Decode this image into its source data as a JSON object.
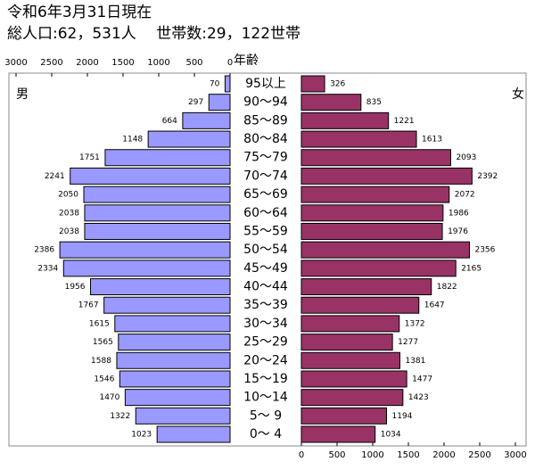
{
  "chart_data": {
    "type": "pyramid",
    "title": "令和6年3月31日現在",
    "subtitle": "総人口:62，531人　 世帯数:29，122世帯",
    "y_label": "年齢",
    "categories": [
      "95以上",
      "90～94",
      "85～89",
      "80～84",
      "75～79",
      "70～74",
      "65～69",
      "60～64",
      "55～59",
      "50～54",
      "45～49",
      "40～44",
      "35～39",
      "30～34",
      "25～29",
      "20～24",
      "15～19",
      "10～14",
      "5～ 9",
      "0～ 4"
    ],
    "series": [
      {
        "name": "男",
        "color": "#9999ff",
        "values": [
          70,
          297,
          664,
          1148,
          1751,
          2241,
          2050,
          2038,
          2038,
          2386,
          2334,
          1956,
          1767,
          1615,
          1565,
          1588,
          1546,
          1470,
          1322,
          1023
        ]
      },
      {
        "name": "女",
        "color": "#993366",
        "values": [
          326,
          835,
          1221,
          1613,
          2093,
          2392,
          2072,
          1986,
          1976,
          2356,
          2165,
          1822,
          1647,
          1372,
          1277,
          1381,
          1477,
          1423,
          1194,
          1034
        ]
      }
    ],
    "xlim": [
      0,
      3000
    ],
    "xticks": [
      0,
      500,
      1000,
      1500,
      2000,
      2500,
      3000
    ]
  }
}
